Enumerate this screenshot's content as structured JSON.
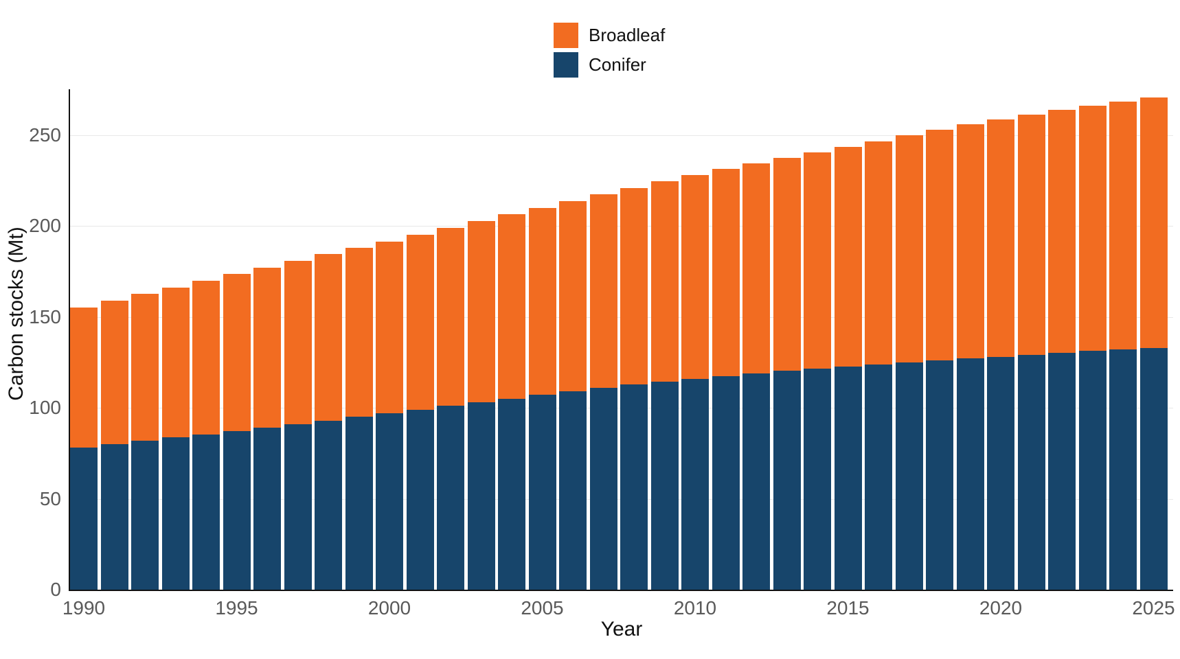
{
  "chart": {
    "legend": {
      "items": [
        {
          "label": "Broadleaf",
          "color": "#f26c21"
        },
        {
          "label": "Conifer",
          "color": "#17456b"
        }
      ]
    }
  },
  "chart_data": {
    "type": "bar",
    "stacked": true,
    "title": "",
    "xlabel": "Year",
    "ylabel": "Carbon stocks (Mt)",
    "x": [
      1990,
      1991,
      1992,
      1993,
      1994,
      1995,
      1996,
      1997,
      1998,
      1999,
      2000,
      2001,
      2002,
      2003,
      2004,
      2005,
      2006,
      2007,
      2008,
      2009,
      2010,
      2011,
      2012,
      2013,
      2014,
      2015,
      2016,
      2017,
      2018,
      2019,
      2020,
      2021,
      2022,
      2023,
      2024,
      2025
    ],
    "series": [
      {
        "name": "Conifer",
        "color": "#17456b",
        "values": [
          78.0,
          79.9,
          81.8,
          83.6,
          85.3,
          87.0,
          89.0,
          91.0,
          93.0,
          95.0,
          97.0,
          99.0,
          101.0,
          103.0,
          105.0,
          107.0,
          109.0,
          110.9,
          112.7,
          114.4,
          116.0,
          117.5,
          118.9,
          120.2,
          121.4,
          122.5,
          123.7,
          124.9,
          126.0,
          127.0,
          128.0,
          129.1,
          130.2,
          131.2,
          132.1,
          133.0
        ]
      },
      {
        "name": "Broadleaf",
        "color": "#f26c21",
        "values": [
          77.0,
          78.9,
          80.7,
          82.6,
          84.6,
          86.5,
          88.1,
          89.8,
          91.4,
          93.0,
          94.5,
          96.2,
          97.9,
          99.6,
          101.3,
          103.0,
          104.6,
          106.3,
          108.1,
          110.0,
          112.0,
          113.7,
          115.4,
          117.2,
          119.1,
          121.0,
          122.9,
          124.8,
          126.7,
          128.7,
          130.5,
          132.0,
          133.4,
          134.8,
          136.2,
          137.5
        ]
      }
    ],
    "ylim": [
      0,
      275
    ],
    "yticks": [
      0,
      50,
      100,
      150,
      200,
      250
    ],
    "xticks": [
      1990,
      1995,
      2000,
      2005,
      2010,
      2015,
      2020,
      2025
    ],
    "grid": true,
    "legend_position": "top-center"
  }
}
